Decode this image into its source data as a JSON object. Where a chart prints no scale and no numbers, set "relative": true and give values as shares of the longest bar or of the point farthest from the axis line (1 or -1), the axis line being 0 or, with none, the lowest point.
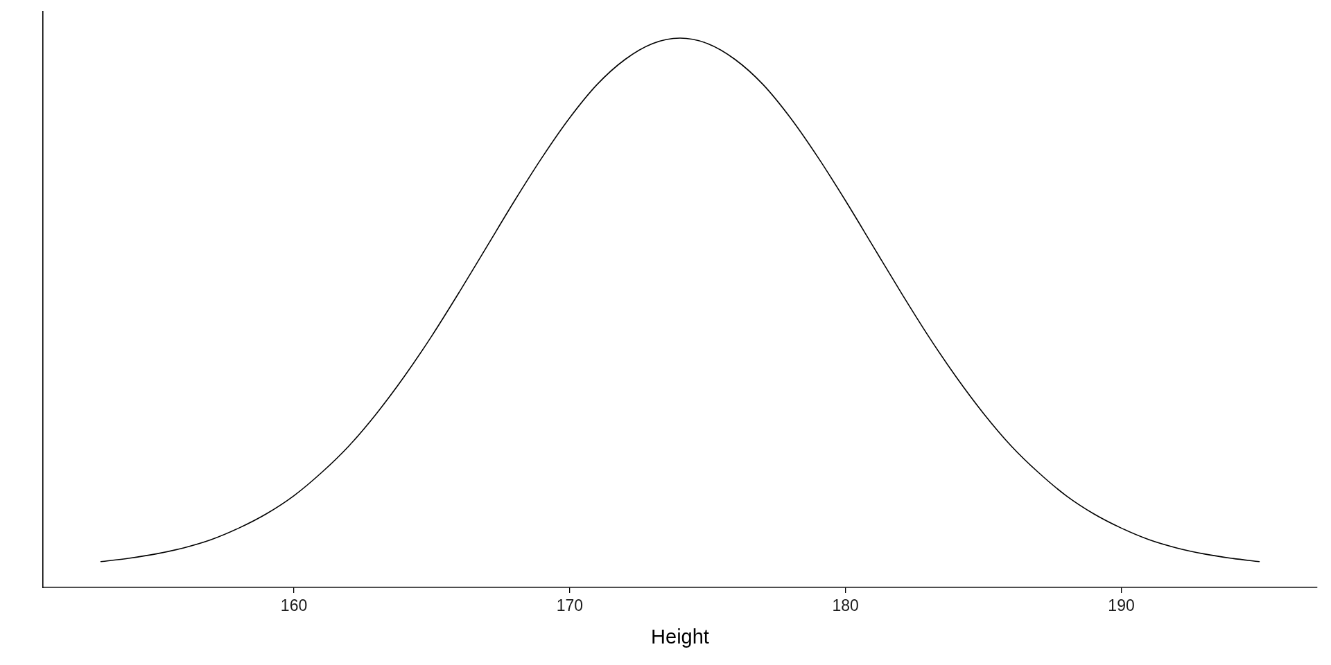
{
  "chart_data": {
    "type": "line",
    "xlabel": "Height",
    "x": [
      153,
      154,
      155,
      156,
      157,
      158,
      159,
      160,
      161,
      162,
      163,
      164,
      165,
      166,
      167,
      168,
      169,
      170,
      171,
      172,
      173,
      174,
      175,
      176,
      177,
      178,
      179,
      180,
      181,
      182,
      183,
      184,
      185,
      186,
      187,
      188,
      189,
      190,
      191,
      192,
      193,
      194,
      195
    ],
    "series": [
      {
        "color": "#000000",
        "values": [
          0.047,
          0.053,
          0.061,
          0.072,
          0.087,
          0.108,
          0.134,
          0.167,
          0.209,
          0.258,
          0.317,
          0.384,
          0.458,
          0.538,
          0.621,
          0.704,
          0.783,
          0.855,
          0.916,
          0.961,
          0.99,
          1.0,
          0.99,
          0.961,
          0.916,
          0.855,
          0.783,
          0.704,
          0.621,
          0.538,
          0.458,
          0.384,
          0.317,
          0.258,
          0.209,
          0.167,
          0.134,
          0.108,
          0.087,
          0.072,
          0.061,
          0.053,
          0.047
        ]
      }
    ],
    "relative": true,
    "xlim": [
      150.9,
      197.1
    ],
    "xticks": [
      160,
      170,
      180,
      190
    ],
    "grid": false
  }
}
